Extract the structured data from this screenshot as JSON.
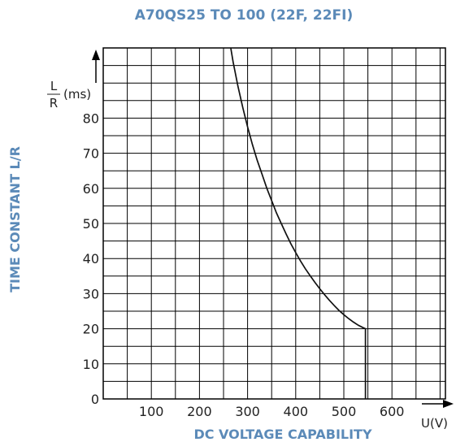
{
  "chart_data": {
    "type": "line",
    "title": "A70QS25 TO 100 (22F, 22FI)",
    "xlabel": "DC VOLTAGE CAPABILITY",
    "ylabel": "TIME CONSTANT L/R",
    "x_unit": "U(V)",
    "y_unit_num": "L",
    "y_unit_den": "R",
    "y_unit_suffix": "(ms)",
    "xlim": [
      0,
      700
    ],
    "ylim": [
      0,
      100
    ],
    "x_ticks": [
      "100",
      "200",
      "300",
      "400",
      "500",
      "600"
    ],
    "y_ticks": [
      "0",
      "10",
      "20",
      "30",
      "40",
      "50",
      "60",
      "70",
      "80"
    ],
    "grid": true,
    "colors": {
      "title": "#5b8ab8",
      "axis_title": "#5b8ab8",
      "grid": "#000000",
      "curve": "#111111"
    },
    "series": [
      {
        "x": [
          265,
          270,
          280,
          290,
          300,
          310,
          320,
          330,
          340,
          350,
          360,
          370,
          380,
          390,
          400,
          410,
          420,
          430,
          440,
          450,
          460,
          470,
          480,
          490,
          500,
          510,
          520,
          530,
          540,
          545,
          545
        ],
        "y": [
          100,
          96,
          89,
          83,
          77.5,
          72.5,
          68,
          64,
          60,
          56.5,
          53,
          50,
          47,
          44.2,
          41.7,
          39.3,
          37.1,
          35.1,
          33.2,
          31.4,
          29.7,
          28.1,
          26.6,
          25.2,
          24,
          22.9,
          21.9,
          21,
          20.3,
          20,
          0
        ]
      }
    ]
  }
}
